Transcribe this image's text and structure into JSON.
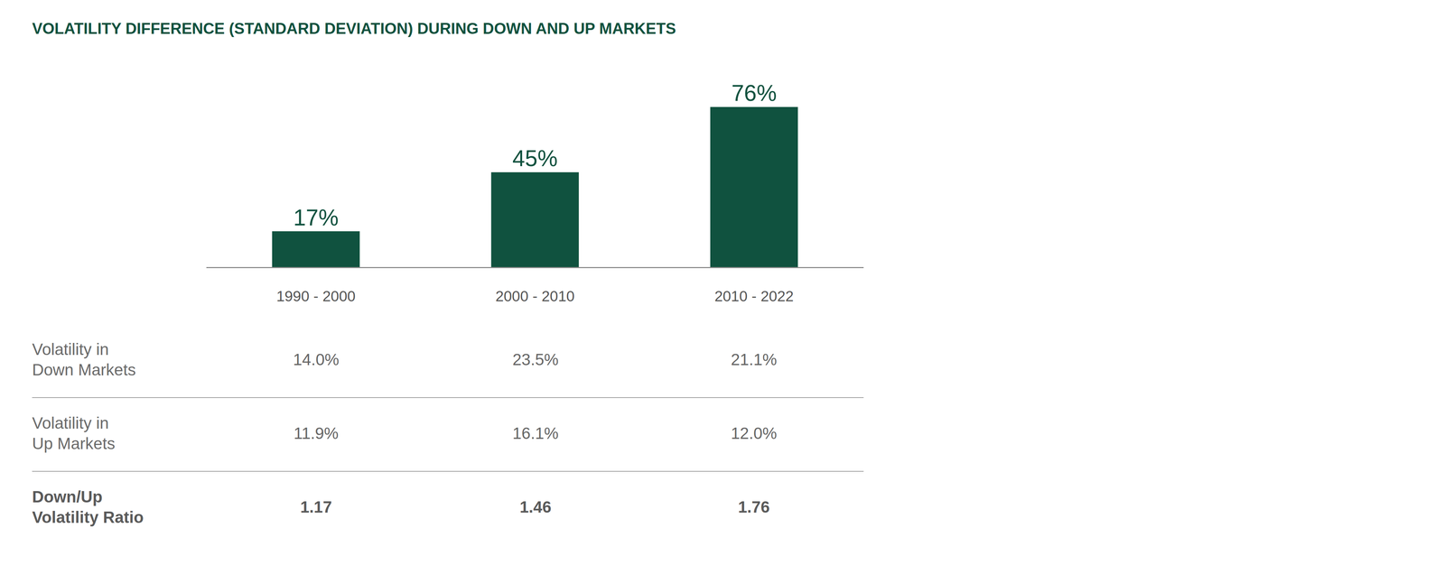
{
  "chart_data": {
    "type": "bar",
    "title": "VOLATILITY DIFFERENCE (STANDARD DEVIATION) DURING DOWN AND UP MARKETS",
    "categories": [
      "1990 - 2000",
      "2000 - 2010",
      "2010 - 2022"
    ],
    "values": [
      17,
      45,
      76
    ],
    "value_labels": [
      "17%",
      "45%",
      "76%"
    ],
    "data_labels": true,
    "color": "#10523f",
    "ylim": [
      0,
      100
    ],
    "tick_labels": "x",
    "grid": false
  },
  "table": {
    "rows": [
      {
        "label": [
          "Volatility in",
          "Down Markets"
        ],
        "values": [
          "14.0%",
          "23.5%",
          "21.1%"
        ]
      },
      {
        "label": [
          "Volatility in",
          "Up Markets"
        ],
        "values": [
          "11.9%",
          "16.1%",
          "12.0%"
        ]
      },
      {
        "label": [
          "Down/Up",
          "Volatility Ratio"
        ],
        "values": [
          "1.17",
          "1.46",
          "1.76"
        ]
      }
    ]
  }
}
